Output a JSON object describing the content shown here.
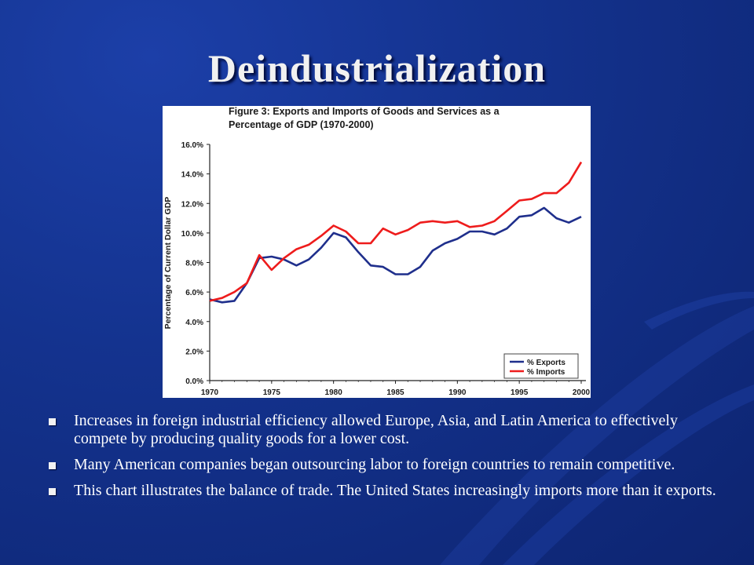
{
  "slide": {
    "title": "Deindustrialization",
    "bullets": [
      "Increases in foreign industrial efficiency allowed Europe, Asia, and Latin America to effectively compete by producing quality goods for a lower cost.",
      "Many American companies began outsourcing labor to foreign countries to remain competitive.",
      "This chart illustrates the balance of trade. The United States increasingly imports more than it exports."
    ]
  },
  "colors": {
    "background": "#14338f",
    "exports": "#1f2f8c",
    "imports": "#ee1c1c"
  },
  "chart_data": {
    "type": "line",
    "title": "Figure 3: Exports and Imports of Goods and Services as a Percentage of GDP (1970-2000)",
    "title_lines": [
      "Figure 3: Exports and Imports of Goods and Services as a",
      "Percentage of GDP (1970-2000)"
    ],
    "xlabel": "",
    "ylabel": "Percentage of Current Dollar GDP",
    "xlim": [
      1970,
      2000
    ],
    "ylim": [
      0,
      16
    ],
    "x_ticks": [
      "1970",
      "1975",
      "1980",
      "1985",
      "1990",
      "1995",
      "2000"
    ],
    "y_ticks": [
      "0.0%",
      "2.0%",
      "4.0%",
      "6.0%",
      "8.0%",
      "10.0%",
      "12.0%",
      "14.0%",
      "16.0%"
    ],
    "legend_position": "bottom-right",
    "grid": false,
    "x": [
      1970,
      1971,
      1972,
      1973,
      1974,
      1975,
      1976,
      1977,
      1978,
      1979,
      1980,
      1981,
      1982,
      1983,
      1984,
      1985,
      1986,
      1987,
      1988,
      1989,
      1990,
      1991,
      1992,
      1993,
      1994,
      1995,
      1996,
      1997,
      1998,
      1999,
      2000
    ],
    "series": [
      {
        "name": "% Exports",
        "color": "#1f2f8c",
        "values": [
          5.5,
          5.3,
          5.4,
          6.6,
          8.3,
          8.4,
          8.2,
          7.8,
          8.2,
          9.0,
          10.0,
          9.7,
          8.7,
          7.8,
          7.7,
          7.2,
          7.2,
          7.7,
          8.8,
          9.3,
          9.6,
          10.1,
          10.1,
          9.9,
          10.3,
          11.1,
          11.2,
          11.7,
          11.0,
          10.7,
          11.1
        ]
      },
      {
        "name": "% Imports",
        "color": "#ee1c1c",
        "values": [
          5.4,
          5.6,
          6.0,
          6.6,
          8.5,
          7.5,
          8.3,
          8.9,
          9.2,
          9.8,
          10.5,
          10.1,
          9.3,
          9.3,
          10.3,
          9.9,
          10.2,
          10.7,
          10.8,
          10.7,
          10.8,
          10.4,
          10.5,
          10.8,
          11.5,
          12.2,
          12.3,
          12.7,
          12.7,
          13.4,
          14.8
        ]
      }
    ]
  }
}
